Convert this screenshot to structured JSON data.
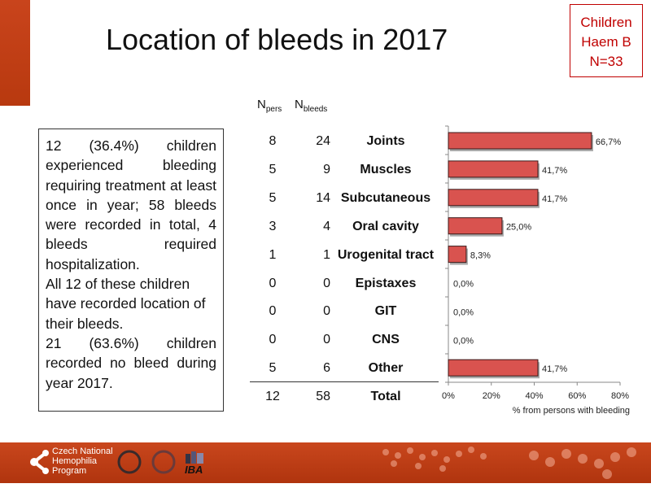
{
  "title": "Location of bleeds in 2017",
  "badge": {
    "line1": "Children",
    "line2": "Haem B",
    "line3": "N=33"
  },
  "note": [
    "12 (36.4%) children experienced bleeding requiring treatment at least once in year; 58 bleeds were recorded in total, 4 bleeds required hospitalization.",
    "All 12 of these children have recorded location of their bleeds.",
    "21 (63.6%) children recorded no bleed during year 2017."
  ],
  "table": {
    "h1": "N",
    "h1sub": "pers",
    "h2": "N",
    "h2sub": "bleeds",
    "rows": [
      {
        "n_pers": "8",
        "n_bleeds": "24",
        "label": "Joints"
      },
      {
        "n_pers": "5",
        "n_bleeds": "9",
        "label": "Muscles"
      },
      {
        "n_pers": "5",
        "n_bleeds": "14",
        "label": "Subcutaneous"
      },
      {
        "n_pers": "3",
        "n_bleeds": "4",
        "label": "Oral cavity"
      },
      {
        "n_pers": "1",
        "n_bleeds": "1",
        "label": "Urogenital tract"
      },
      {
        "n_pers": "0",
        "n_bleeds": "0",
        "label": "Epistaxes"
      },
      {
        "n_pers": "0",
        "n_bleeds": "0",
        "label": "GIT"
      },
      {
        "n_pers": "0",
        "n_bleeds": "0",
        "label": "CNS"
      },
      {
        "n_pers": "5",
        "n_bleeds": "6",
        "label": "Other"
      }
    ],
    "total": {
      "n_pers": "12",
      "n_bleeds": "58",
      "label": "Total"
    }
  },
  "chart_data": {
    "type": "bar",
    "orientation": "horizontal",
    "categories": [
      "Joints",
      "Muscles",
      "Subcutaneous",
      "Oral cavity",
      "Urogenital tract",
      "Epistaxes",
      "GIT",
      "CNS",
      "Other"
    ],
    "values": [
      66.7,
      41.7,
      41.7,
      25.0,
      8.3,
      0.0,
      0.0,
      0.0,
      41.7
    ],
    "data_labels": [
      "66,7%",
      "41,7%",
      "41,7%",
      "25,0%",
      "8,3%",
      "0,0%",
      "0,0%",
      "0,0%",
      "41,7%"
    ],
    "xlim": [
      0,
      80
    ],
    "xticks": [
      "0%",
      "20%",
      "40%",
      "60%",
      "80%"
    ],
    "xlabel": "% from persons with bleeding",
    "bar_color": "#d9534f"
  },
  "footer": {
    "org": [
      "Czech National",
      "Hemophilia",
      "Program"
    ],
    "iba": "IBA"
  }
}
